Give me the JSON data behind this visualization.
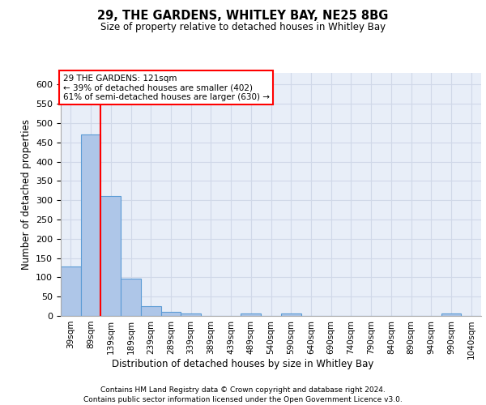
{
  "title1": "29, THE GARDENS, WHITLEY BAY, NE25 8BG",
  "title2": "Size of property relative to detached houses in Whitley Bay",
  "xlabel": "Distribution of detached houses by size in Whitley Bay",
  "ylabel": "Number of detached properties",
  "footer1": "Contains HM Land Registry data © Crown copyright and database right 2024.",
  "footer2": "Contains public sector information licensed under the Open Government Licence v3.0.",
  "bin_labels": [
    "39sqm",
    "89sqm",
    "139sqm",
    "189sqm",
    "239sqm",
    "289sqm",
    "339sqm",
    "389sqm",
    "439sqm",
    "489sqm",
    "540sqm",
    "590sqm",
    "640sqm",
    "690sqm",
    "740sqm",
    "790sqm",
    "840sqm",
    "890sqm",
    "940sqm",
    "990sqm",
    "1040sqm"
  ],
  "bar_heights": [
    129,
    470,
    311,
    96,
    26,
    11,
    7,
    0,
    0,
    7,
    0,
    7,
    0,
    0,
    0,
    0,
    0,
    0,
    0,
    6,
    0
  ],
  "bar_color": "#aec6e8",
  "bar_edge_color": "#5b9bd5",
  "ylim": [
    0,
    630
  ],
  "yticks": [
    0,
    50,
    100,
    150,
    200,
    250,
    300,
    350,
    400,
    450,
    500,
    550,
    600
  ],
  "property_sqm": 121,
  "property_bin_index": 1,
  "red_line_x": 1,
  "annotation_text1": "29 THE GARDENS: 121sqm",
  "annotation_text2": "← 39% of detached houses are smaller (402)",
  "annotation_text3": "61% of semi-detached houses are larger (630) →",
  "annotation_box_color": "white",
  "annotation_box_edge": "red",
  "vline_color": "red",
  "grid_color": "#d0d8e8",
  "background_color": "#e8eef8"
}
